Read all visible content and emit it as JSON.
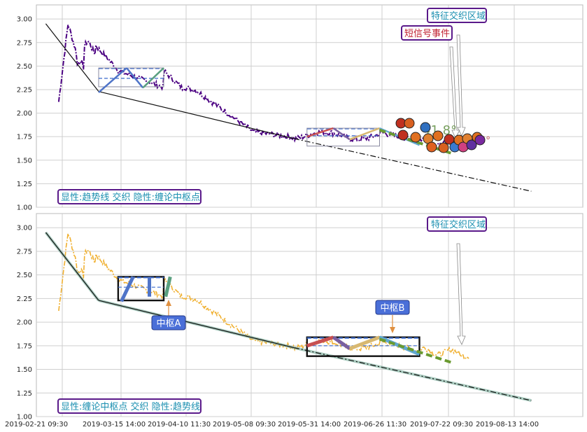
{
  "chart_data": [
    {
      "type": "line",
      "panel": "top",
      "ylim": [
        1.0,
        3.15
      ],
      "yticks": [
        "1.00",
        "1.25",
        "1.50",
        "1.75",
        "2.00",
        "2.25",
        "2.50",
        "2.75",
        "3.00"
      ],
      "grid": true,
      "legend_box": "显性:趋势线 交织 隐性:缠论中枢点",
      "annotations": [
        "特征交织区域",
        "短信号事件"
      ],
      "angle_labels": [
        "41.8°",
        "36.6°"
      ],
      "series_color": "#4b0082",
      "trend_lines": [
        {
          "from": [
            0.1,
            2.95
          ],
          "to": [
            1.0,
            2.23
          ]
        },
        {
          "from": [
            1.0,
            2.23
          ],
          "to": [
            4.0,
            1.73
          ]
        },
        {
          "from": [
            4.0,
            1.73
          ],
          "to": [
            7.6,
            1.17
          ]
        }
      ],
      "zhongshu_boxes": [
        {
          "x": [
            1.0,
            2.0
          ],
          "y": [
            2.28,
            2.48
          ],
          "mid": 2.37
        },
        {
          "x": [
            4.2,
            5.3
          ],
          "y": [
            1.65,
            1.84
          ],
          "mid": 1.76
        }
      ]
    },
    {
      "type": "line",
      "panel": "bottom",
      "ylim": [
        1.0,
        3.15
      ],
      "yticks": [
        "1.00",
        "1.25",
        "1.50",
        "1.75",
        "2.00",
        "2.25",
        "2.50",
        "2.75",
        "3.00"
      ],
      "grid": true,
      "legend_box": "显性:缠论中枢点 交织 隐性:趋势线",
      "annotations": [
        "特征交织区域",
        "中枢A",
        "中枢B"
      ],
      "series_color": "#f0b030",
      "trend_lines": [
        {
          "from": [
            0.1,
            2.95
          ],
          "to": [
            1.0,
            2.23
          ]
        },
        {
          "from": [
            1.0,
            2.23
          ],
          "to": [
            4.0,
            1.73
          ]
        },
        {
          "from": [
            4.0,
            1.73
          ],
          "to": [
            7.6,
            1.17
          ]
        }
      ],
      "zhongshu_boxes": [
        {
          "x": [
            1.3,
            2.0
          ],
          "y": [
            2.23,
            2.48
          ],
          "mid": 2.37
        },
        {
          "x": [
            4.2,
            5.9
          ],
          "y": [
            1.64,
            1.84
          ],
          "mid": 1.75
        }
      ]
    }
  ],
  "x_ticks": [
    "2019-02-21 09:30",
    "2019-03-15 14:00",
    "2019-04-10 11:30",
    "2019-05-08 09:30",
    "2019-05-31 14:00",
    "2019-06-26 11:30",
    "2019-07-22 09:30",
    "2019-08-13 14:00"
  ],
  "colors": {
    "grid": "#cfcfcf",
    "box_border": "#5a1a8a",
    "box_text": "#1a8fb0",
    "red_label_text": "#c02030",
    "badge_fill": "#4a6fd8",
    "angle_text": "#c06060"
  }
}
